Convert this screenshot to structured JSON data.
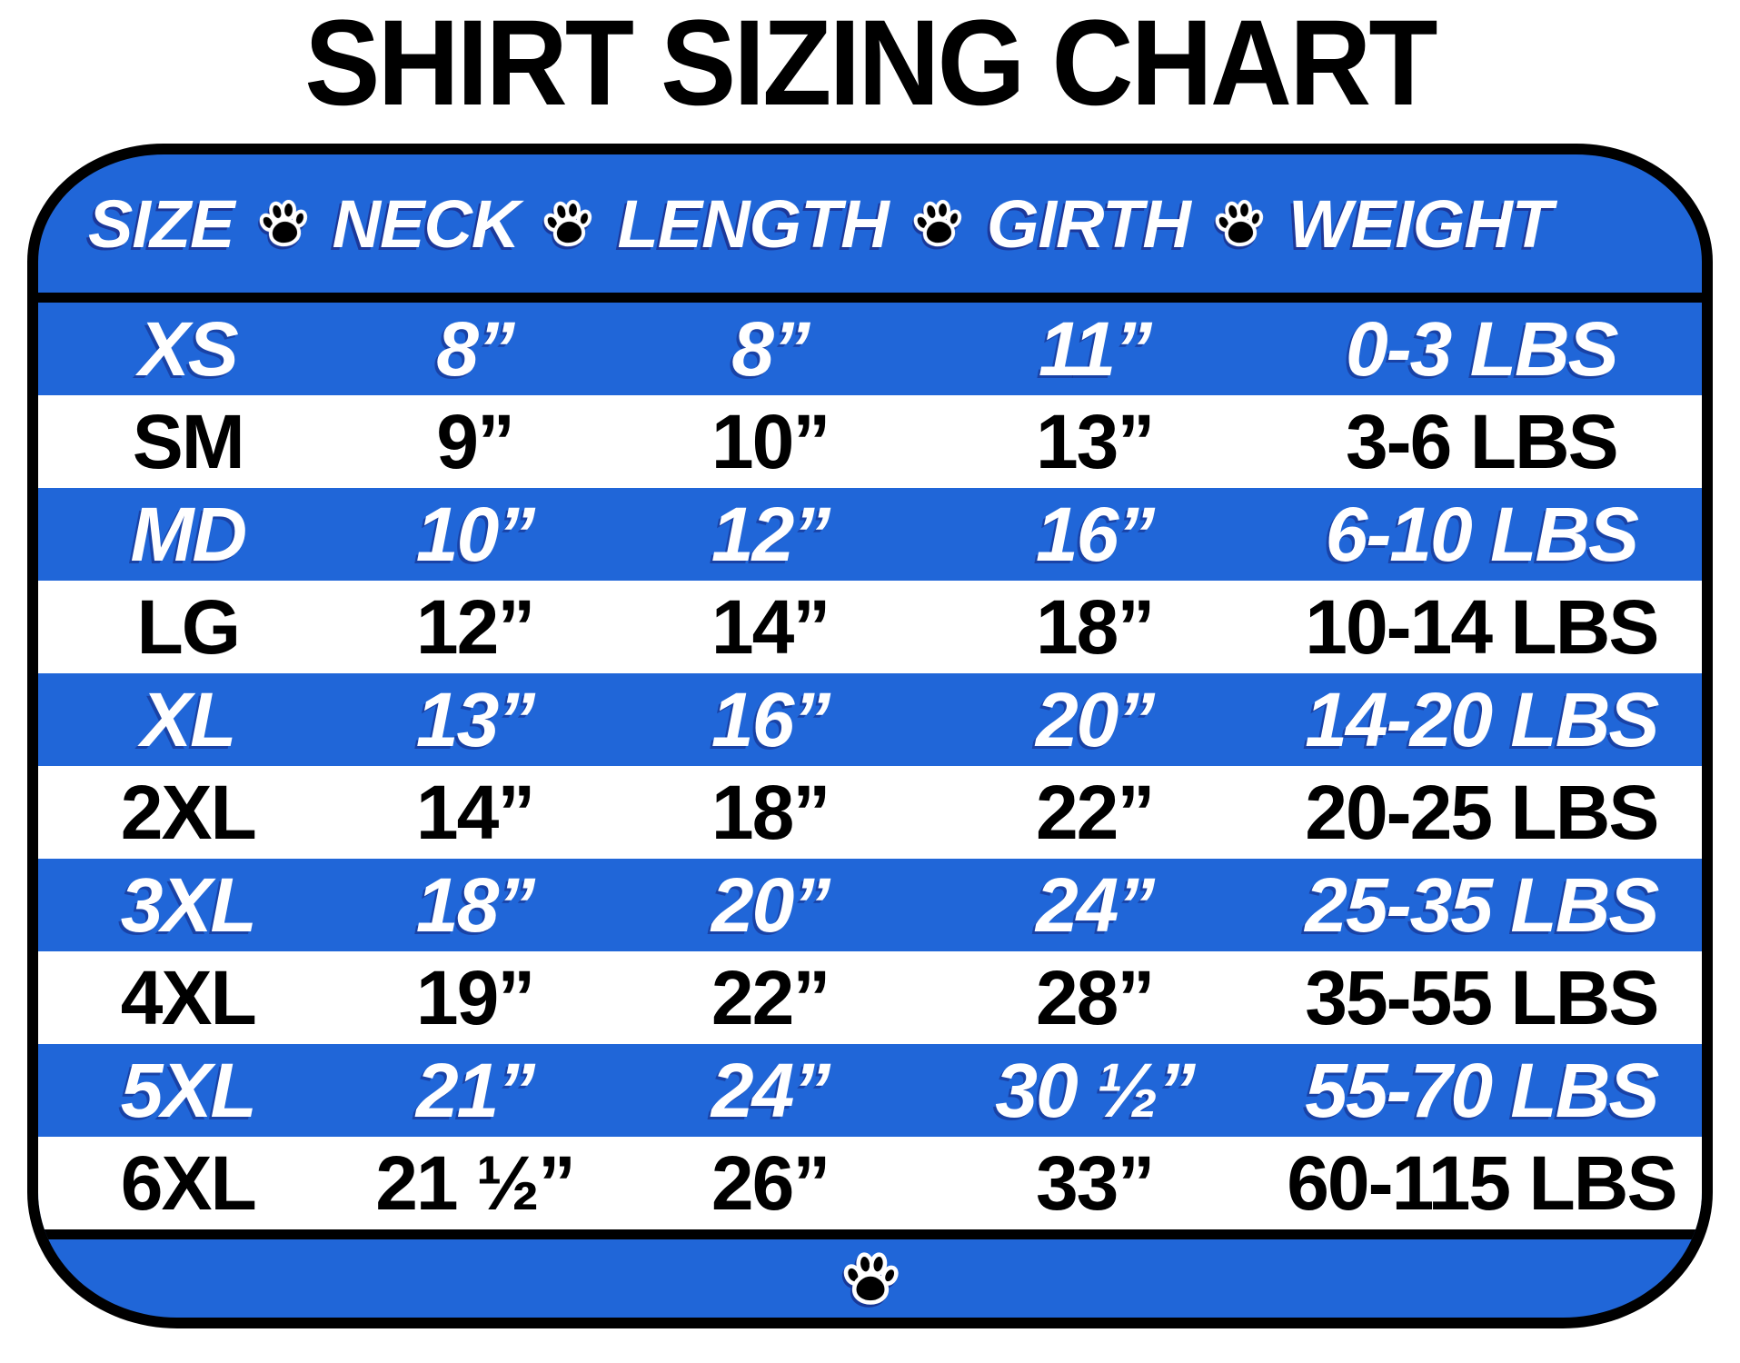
{
  "title": "SHIRT SIZING CHART",
  "colors": {
    "panel_blue": "#2066D8",
    "stripe_white": "#FFFFFF",
    "border_black": "#000000",
    "header_text": "#FFFFFF"
  },
  "chart_data": {
    "type": "table",
    "title": "SHIRT SIZING CHART",
    "columns": [
      "SIZE",
      "NECK",
      "LENGTH",
      "GIRTH",
      "WEIGHT"
    ],
    "rows": [
      [
        "XS",
        "8”",
        "8”",
        "11”",
        "0-3 LBS"
      ],
      [
        "SM",
        "9”",
        "10”",
        "13”",
        "3-6 LBS"
      ],
      [
        "MD",
        "10”",
        "12”",
        "16”",
        "6-10 LBS"
      ],
      [
        "LG",
        "12”",
        "14”",
        "18”",
        "10-14 LBS"
      ],
      [
        "XL",
        "13”",
        "16”",
        "20”",
        "14-20 LBS"
      ],
      [
        "2XL",
        "14”",
        "18”",
        "22”",
        "20-25 LBS"
      ],
      [
        "3XL",
        "18”",
        "20”",
        "24”",
        "25-35 LBS"
      ],
      [
        "4XL",
        "19”",
        "22”",
        "28”",
        "35-55 LBS"
      ],
      [
        "5XL",
        "21”",
        "24”",
        "30 ½”",
        "55-70 LBS"
      ],
      [
        "6XL",
        "21 ½”",
        "26”",
        "33”",
        "60-115 LBS"
      ]
    ],
    "highlighted_row_indices": [
      0,
      2,
      4,
      6,
      8
    ],
    "header_separator_icon": "paw-print",
    "footer_icon": "paw-print",
    "layout_hints": {
      "stripe_style": "alternating blue/white",
      "legend": "none",
      "grid": "off"
    }
  }
}
